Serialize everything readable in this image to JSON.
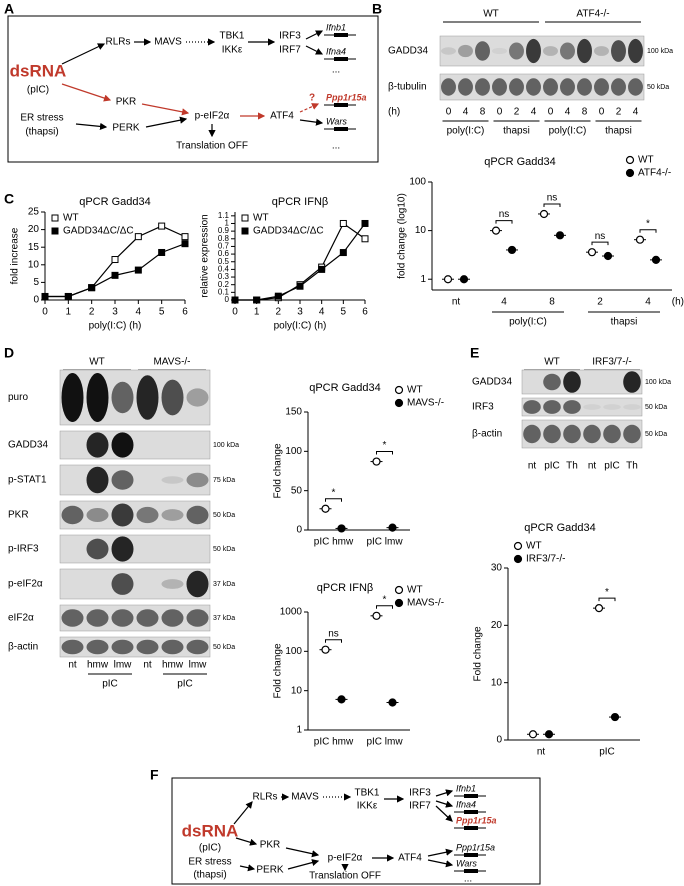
{
  "panel_labels": [
    "A",
    "B",
    "C",
    "D",
    "E",
    "F"
  ],
  "diagram_a": {
    "nodes": [
      "dsRNA",
      "(pIC)",
      "RLRs",
      "MAVS",
      "TBK1",
      "IKKε",
      "IRF3",
      "IRF7",
      "Ifnb1",
      "Ifna4",
      "...",
      "PKR",
      "ER stress",
      "(thapsi)",
      "PERK",
      "p-eIF2α",
      "ATF4",
      "?",
      "Ppp1r15a",
      "Wars",
      "Translation OFF",
      "..."
    ]
  },
  "blot_b": {
    "genotypes": [
      "WT",
      "ATF4-/-"
    ],
    "rows": [
      "GADD34",
      "β-tubulin"
    ],
    "markers": [
      "100 kDa",
      "50 kDa"
    ],
    "time_unit": "(h)",
    "lanes": [
      0,
      4,
      8,
      0,
      2,
      4,
      0,
      4,
      8,
      0,
      2,
      4
    ],
    "groups": [
      "poly(I:C)",
      "thapsi",
      "poly(I:C)",
      "thapsi"
    ]
  },
  "blot_d": {
    "genotypes": [
      "WT",
      "MAVS-/-"
    ],
    "rows": [
      "puro",
      "GADD34",
      "p-STAT1",
      "PKR",
      "p-IRF3",
      "p-eIF2α",
      "eIF2α",
      "β-actin"
    ],
    "markers": [
      null,
      "100 kDa",
      "75 kDa",
      "50 kDa",
      "50 kDa",
      "37 kDa",
      "37 kDa",
      "50 kDa"
    ],
    "lanes": [
      "nt",
      "hmw",
      "lmw",
      "nt",
      "hmw",
      "lmw"
    ],
    "groups": [
      "pIC",
      "pIC"
    ]
  },
  "blot_e": {
    "genotypes": [
      "WT",
      "IRF3/7-/-"
    ],
    "rows": [
      "GADD34",
      "IRF3",
      "β-actin"
    ],
    "markers": [
      "100 kDa",
      "50 kDa",
      "50 kDa"
    ],
    "lanes": [
      "nt",
      "pIC",
      "Th",
      "nt",
      "pIC",
      "Th"
    ]
  },
  "diagram_f": {
    "nodes": [
      "dsRNA",
      "(pIC)",
      "RLRs",
      "MAVS",
      "TBK1",
      "IKKε",
      "IRF3",
      "IRF7",
      "Ifnb1",
      "Ifna4",
      "Ppp1r15a",
      "PKR",
      "ER stress",
      "(thapsi)",
      "PERK",
      "p-eIF2α",
      "ATF4",
      "Ppp1r15a",
      "Wars",
      "Translation OFF",
      "..."
    ]
  },
  "chart_data": [
    {
      "type": "dot",
      "title": "qPCR Gadd34",
      "ylabel": "fold change (log10)",
      "ylog": true,
      "ylim": [
        0.6,
        100
      ],
      "yticks": [
        1,
        10,
        100
      ],
      "categories": [
        "nt",
        "4",
        "8",
        "2",
        "4"
      ],
      "group_labels": [
        "poly(I:C)",
        "thapsi"
      ],
      "x_unit": "(h)",
      "series": [
        {
          "name": "WT",
          "color": "#000000",
          "marker": "open",
          "values": [
            1,
            10,
            22,
            3.6,
            6.5
          ]
        },
        {
          "name": "ATF4-/-",
          "color": "#000000",
          "marker": "filled",
          "values": [
            1,
            4,
            8,
            3,
            2.5
          ]
        }
      ],
      "annotations": [
        null,
        "ns",
        "ns",
        "ns",
        "*"
      ],
      "legend": "upper right"
    },
    {
      "type": "line",
      "title": "qPCR Gadd34",
      "ylabel": "fold increase",
      "xlabel": "poly(I:C) (h)",
      "x": [
        0,
        1,
        2,
        3,
        4,
        5,
        6
      ],
      "xlim": [
        0,
        6
      ],
      "xticks": [
        0,
        1,
        2,
        3,
        4,
        5,
        6
      ],
      "ylim": [
        0,
        25
      ],
      "yticks": [
        0,
        5,
        10,
        15,
        20,
        25
      ],
      "series": [
        {
          "name": "WT",
          "color": "#000000",
          "marker": "open",
          "values": [
            1,
            1,
            3.5,
            11.5,
            18,
            21,
            18
          ]
        },
        {
          "name": "GADD34ΔC/ΔC",
          "color": "#000000",
          "marker": "filled",
          "values": [
            1,
            1,
            3.5,
            7,
            8.5,
            13.5,
            16
          ]
        }
      ],
      "legend": "upper left"
    },
    {
      "type": "line",
      "title": "qPCR IFNβ",
      "ylabel": "relative expression",
      "xlabel": "poly(I:C) (h)",
      "x": [
        0,
        1,
        2,
        3,
        4,
        5,
        6
      ],
      "xlim": [
        0,
        6
      ],
      "xticks": [
        0,
        1,
        2,
        3,
        4,
        5,
        6
      ],
      "ylim": [
        0,
        1.15
      ],
      "yticks": [
        0,
        0.1,
        0.2,
        0.3,
        0.4,
        0.5,
        0.6,
        0.7,
        0.8,
        0.9,
        1,
        1.1
      ],
      "series": [
        {
          "name": "WT",
          "color": "#000000",
          "marker": "open",
          "values": [
            0,
            0,
            0.03,
            0.2,
            0.43,
            1,
            0.8
          ]
        },
        {
          "name": "GADD34ΔC/ΔC",
          "color": "#000000",
          "marker": "filled",
          "values": [
            0,
            0,
            0.05,
            0.18,
            0.4,
            0.62,
            1
          ]
        }
      ],
      "legend": "upper left"
    },
    {
      "type": "dot",
      "title": "qPCR Gadd34",
      "ylabel": "Fold change",
      "ylim": [
        0,
        150
      ],
      "yticks": [
        0,
        50,
        100,
        150
      ],
      "categories": [
        "pIC hmw",
        "pIC lmw"
      ],
      "series": [
        {
          "name": "WT",
          "color": "#000000",
          "marker": "open",
          "values": [
            27,
            87
          ]
        },
        {
          "name": "MAVS-/-",
          "color": "#000000",
          "marker": "filled",
          "values": [
            2,
            3
          ]
        }
      ],
      "annotations": [
        "*",
        "*"
      ],
      "legend": "upper right"
    },
    {
      "type": "dot",
      "title": "qPCR IFNβ",
      "ylabel": "Fold change",
      "ylog": true,
      "ylim": [
        1,
        1000
      ],
      "yticks": [
        1,
        10,
        100,
        1000
      ],
      "categories": [
        "pIC hmw",
        "pIC lmw"
      ],
      "series": [
        {
          "name": "WT",
          "color": "#000000",
          "marker": "open",
          "values": [
            110,
            800
          ]
        },
        {
          "name": "MAVS-/-",
          "color": "#000000",
          "marker": "filled",
          "values": [
            6,
            5
          ]
        }
      ],
      "annotations": [
        "ns",
        "*"
      ],
      "legend": "upper right"
    },
    {
      "type": "dot",
      "title": "qPCR Gadd34",
      "ylabel": "Fold change",
      "ylim": [
        0,
        30
      ],
      "yticks": [
        0,
        10,
        20,
        30
      ],
      "categories": [
        "nt",
        "pIC"
      ],
      "series": [
        {
          "name": "WT",
          "color": "#000000",
          "marker": "open",
          "values": [
            1,
            23
          ]
        },
        {
          "name": "IRF3/7-/-",
          "color": "#000000",
          "marker": "filled",
          "values": [
            1,
            4
          ]
        }
      ],
      "annotations": [
        null,
        "*"
      ],
      "legend": "upper left"
    }
  ]
}
